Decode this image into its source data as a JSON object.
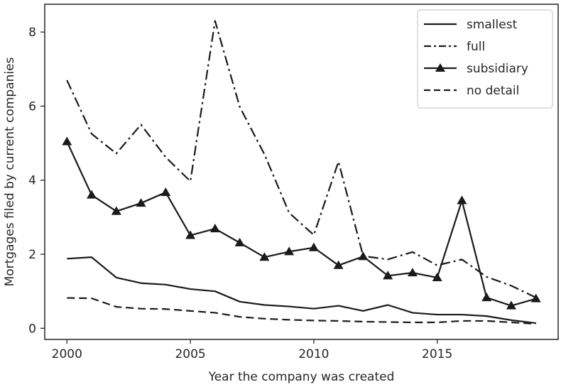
{
  "chart_data": {
    "type": "line",
    "title": "",
    "xlabel": "Year the company was created",
    "ylabel": "Mortgages filed by current companies",
    "x": [
      2000,
      2001,
      2002,
      2003,
      2004,
      2005,
      2006,
      2007,
      2008,
      2009,
      2010,
      2011,
      2012,
      2013,
      2014,
      2015,
      2016,
      2017,
      2018,
      2019
    ],
    "xlim": [
      1999.1,
      2019.9
    ],
    "ylim": [
      -0.3,
      8.75
    ],
    "xticks": [
      2000,
      2005,
      2010,
      2015
    ],
    "yticks": [
      0,
      2,
      4,
      6,
      8
    ],
    "xtick_labels": [
      "2000",
      "2005",
      "2010",
      "2015"
    ],
    "ytick_labels": [
      "0",
      "2",
      "4",
      "6",
      "8"
    ],
    "grid": false,
    "legend_position": "top-right",
    "series": [
      {
        "name": "smallest",
        "style": "solid",
        "marker": "none",
        "values": [
          1.88,
          1.92,
          1.37,
          1.22,
          1.18,
          1.06,
          1.0,
          0.72,
          0.63,
          0.59,
          0.53,
          0.61,
          0.47,
          0.63,
          0.42,
          0.37,
          0.37,
          0.33,
          0.22,
          0.14
        ]
      },
      {
        "name": "full",
        "style": "dashdot",
        "marker": "none",
        "values": [
          6.7,
          5.25,
          4.72,
          5.5,
          4.62,
          3.97,
          8.3,
          5.98,
          4.7,
          3.12,
          2.52,
          4.5,
          1.95,
          1.86,
          2.06,
          1.7,
          1.86,
          1.39,
          1.15,
          0.83
        ]
      },
      {
        "name": "subsidiary",
        "style": "solid",
        "marker": "triangle",
        "values": [
          5.04,
          3.6,
          3.16,
          3.38,
          3.67,
          2.51,
          2.69,
          2.31,
          1.92,
          2.07,
          2.18,
          1.7,
          1.94,
          1.42,
          1.5,
          1.37,
          3.45,
          0.83,
          0.61,
          0.8
        ]
      },
      {
        "name": "no detail",
        "style": "dashed",
        "marker": "none",
        "values": [
          0.82,
          0.81,
          0.58,
          0.53,
          0.52,
          0.47,
          0.42,
          0.31,
          0.26,
          0.23,
          0.21,
          0.2,
          0.18,
          0.17,
          0.16,
          0.16,
          0.2,
          0.2,
          0.16,
          0.12
        ]
      }
    ]
  },
  "colors": {
    "line": "#1a1a1a",
    "axis": "#262626",
    "legend_border": "#cccccc",
    "background": "#ffffff"
  }
}
